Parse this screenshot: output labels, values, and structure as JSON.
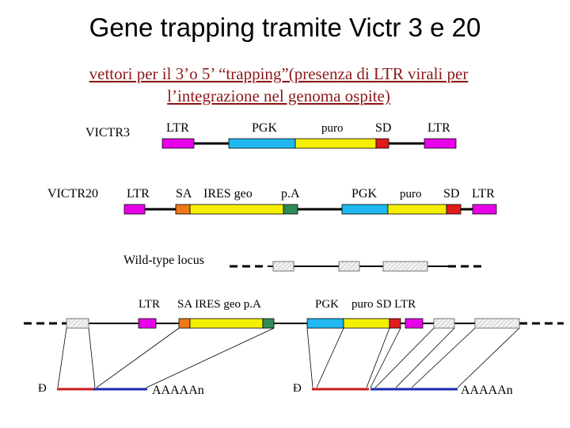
{
  "title": "Gene trapping tramite Victr 3 e 20",
  "subtitle_line1": "vettori per il 3’o 5’ “trapping”(presenza di LTR virali per",
  "subtitle_line2": "l’integrazione nel genoma ospite)",
  "victr3": {
    "name": "VICTR3",
    "labels": {
      "ltr1": "LTR",
      "pgk": "PGK",
      "puro": "puro",
      "sd": "SD",
      "ltr2": "LTR"
    }
  },
  "victr20": {
    "name": "VICTR20",
    "labels": {
      "ltr1": "LTR",
      "sa": "SA",
      "ires_geo": "IRES geo",
      "pa": "p.A",
      "pgk": "PGK",
      "puro": "puro",
      "sd": "SD",
      "ltr2": "LTR"
    }
  },
  "wildtype": {
    "label": "Wild-type locus"
  },
  "integrated": {
    "labels": {
      "ltr1": "LTR",
      "sa_ires_pa": "SA  IRES geo  p.A",
      "pgk": "PGK",
      "puro_sd_ltr": "puro  SD LTR"
    }
  },
  "transcripts": {
    "left_cap": "Ð",
    "left_tail": "AAAAAn",
    "right_cap": "Ð",
    "right_tail": "AAAAAn"
  },
  "colors": {
    "ltr": "#e800e8",
    "pgk": "#1fb8f0",
    "puro": "#f5ef00",
    "sd": "#e31a1a",
    "sa": "#f07818",
    "pa": "#2e8b57",
    "exon_fill": "#f0f0f0",
    "red_line": "#cc1a1a",
    "blue_line": "#1a2aaa",
    "subtitle": "#8b1a1a"
  }
}
